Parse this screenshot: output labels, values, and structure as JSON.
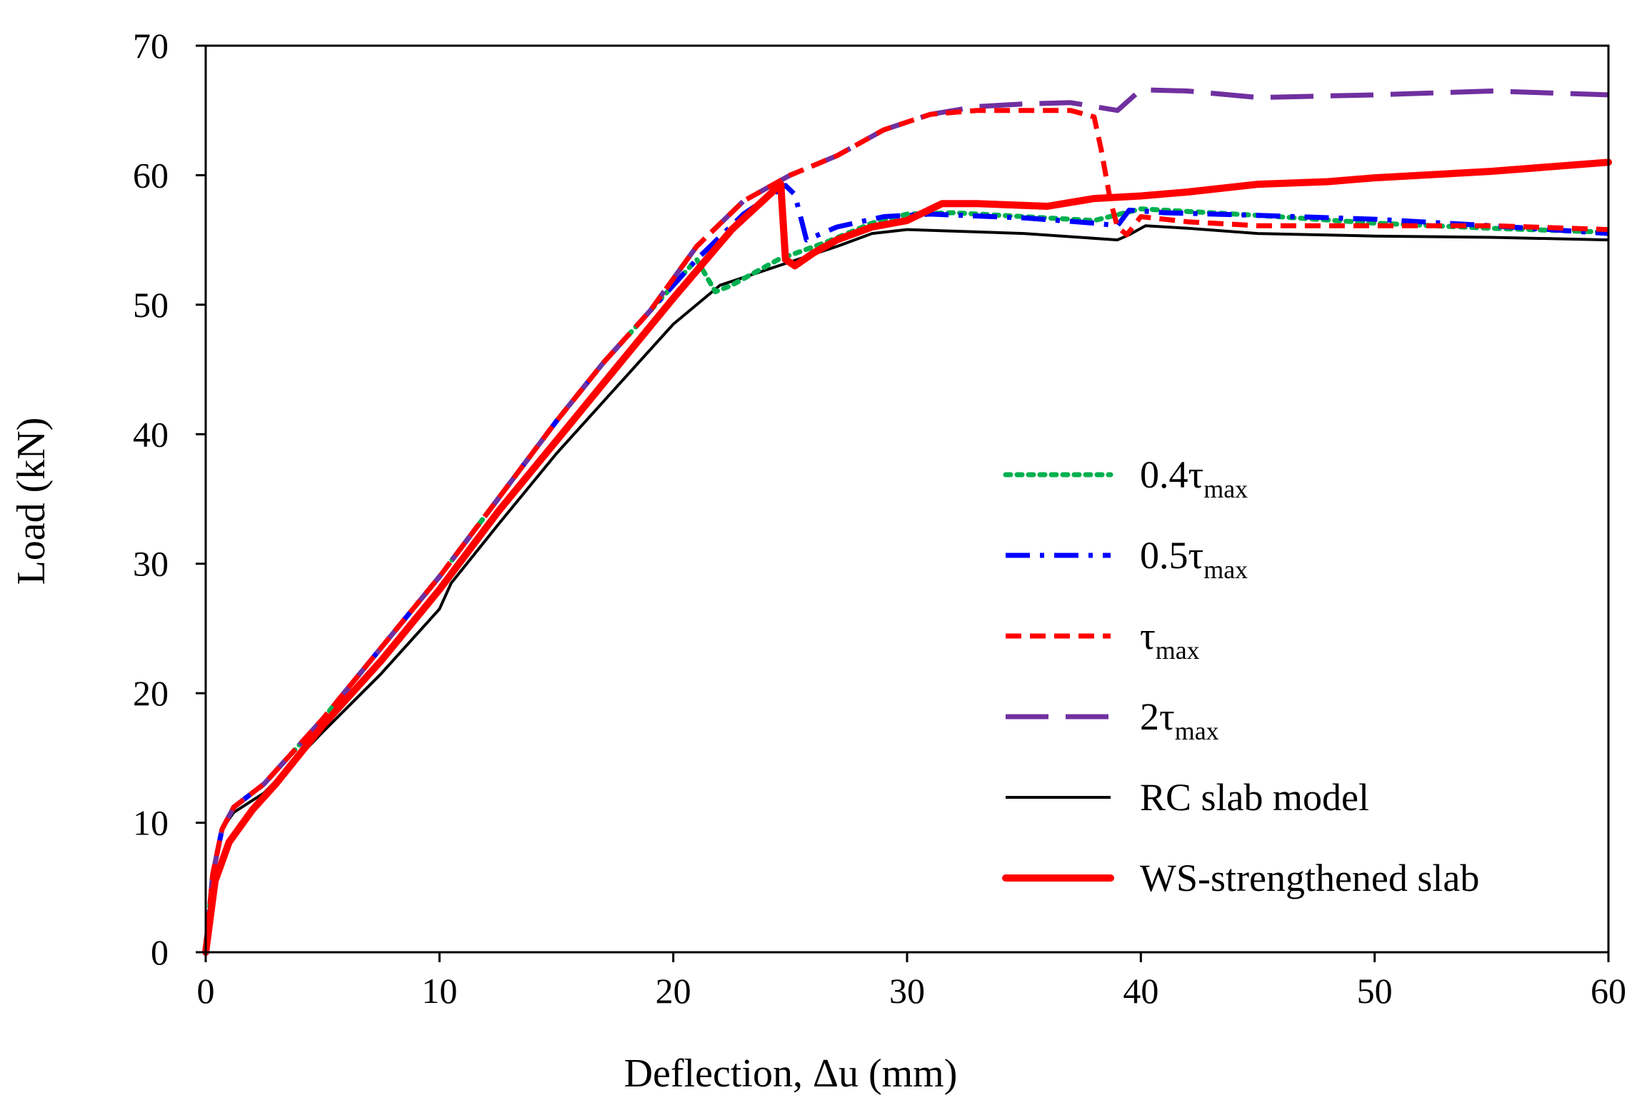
{
  "chart_data": {
    "type": "line",
    "title": "",
    "xlabel": "Deflection, Δu (mm)",
    "ylabel": "Load (kN)",
    "xlim": [
      0,
      60
    ],
    "ylim": [
      0,
      70
    ],
    "xticks": [
      0,
      10,
      20,
      30,
      40,
      50,
      60
    ],
    "yticks": [
      0,
      10,
      20,
      30,
      40,
      50,
      60,
      70
    ],
    "xtick_labels": [
      "0",
      "10",
      "20",
      "30",
      "40",
      "50",
      "60"
    ],
    "ytick_labels": [
      "0",
      "10",
      "20",
      "30",
      "40",
      "50",
      "60",
      "70"
    ],
    "grid": false,
    "legend_position": "center-right",
    "series": [
      {
        "name": "0.4τmax",
        "label_main": "0.4τ",
        "label_sub": "max",
        "color": "#00b050",
        "style": "dotted",
        "x": [
          0,
          0.3,
          0.7,
          1.2,
          2.5,
          5,
          7.5,
          10,
          12.5,
          15,
          17,
          19,
          21,
          21.8,
          22.5,
          24.5,
          26.5,
          28.5,
          30,
          32,
          35,
          38,
          40,
          42,
          45,
          50,
          55,
          60
        ],
        "y": [
          0,
          6,
          9.5,
          11.2,
          13,
          18,
          23.5,
          29,
          35,
          41,
          45.5,
          49.5,
          53.5,
          51,
          51.5,
          53.5,
          54.8,
          56.3,
          57,
          57.1,
          56.8,
          56.5,
          57.4,
          57.2,
          56.9,
          56.3,
          55.9,
          55.6
        ]
      },
      {
        "name": "0.5τmax",
        "label_main": "0.5τ",
        "label_sub": "max",
        "color": "#0000ff",
        "style": "dashdot",
        "x": [
          0,
          0.3,
          0.7,
          1.2,
          2.5,
          5,
          7.5,
          10,
          12.5,
          15,
          17,
          19,
          21,
          23,
          24.8,
          25.2,
          25.7,
          27,
          29,
          31,
          35,
          38,
          39,
          39.5,
          41,
          45,
          50,
          55,
          60
        ],
        "y": [
          0,
          6,
          9.5,
          11.2,
          13,
          18,
          23.5,
          29,
          35,
          41,
          45.5,
          49.5,
          53.5,
          57,
          59.2,
          58.5,
          55,
          56,
          56.8,
          57,
          56.7,
          56.3,
          56.1,
          57.3,
          57.1,
          56.9,
          56.6,
          56.1,
          55.5
        ]
      },
      {
        "name": "τmax",
        "label_main": "τ",
        "label_sub": "max",
        "color": "#ff0000",
        "style": "dashed",
        "x": [
          0,
          0.3,
          0.7,
          1.2,
          2.5,
          5,
          7.5,
          10,
          12.5,
          15,
          17,
          19,
          21,
          23,
          25,
          27,
          29,
          31,
          33,
          35,
          37,
          38,
          38.3,
          38.7,
          39,
          39.4,
          40,
          42,
          45,
          50,
          55,
          60
        ],
        "y": [
          0,
          6,
          9.5,
          11.2,
          13,
          18,
          23.5,
          29,
          35,
          41,
          45.5,
          49.5,
          54.5,
          58,
          60,
          61.5,
          63.5,
          64.7,
          65,
          65,
          65,
          64.5,
          62,
          58,
          56,
          55.4,
          56.8,
          56.4,
          56.1,
          56.1,
          56.1,
          55.8
        ]
      },
      {
        "name": "2τmax",
        "label_main": "2τ",
        "label_sub": "max",
        "color": "#7030a0",
        "style": "longdash",
        "x": [
          0,
          0.3,
          0.7,
          1.2,
          2.5,
          5,
          7.5,
          10,
          12.5,
          15,
          17,
          19,
          21,
          23,
          25,
          27,
          29,
          31,
          33,
          35,
          37,
          39,
          40,
          42,
          45,
          50,
          55,
          60
        ],
        "y": [
          0,
          6,
          9.5,
          11.2,
          13,
          18,
          23.5,
          29,
          35,
          41,
          45.5,
          49.5,
          54.5,
          58,
          60,
          61.5,
          63.5,
          64.7,
          65.3,
          65.5,
          65.6,
          65,
          66.6,
          66.5,
          66,
          66.2,
          66.5,
          66.2
        ]
      },
      {
        "name": "RC slab model",
        "label_main": "RC slab model",
        "label_sub": "",
        "color": "#000000",
        "style": "solid-thin",
        "x": [
          0,
          0.3,
          0.7,
          1.2,
          2.5,
          5,
          7.5,
          10,
          10.5,
          12.5,
          15,
          17.5,
          20,
          22,
          24.5,
          27,
          28.5,
          30,
          35,
          39,
          39.5,
          40.2,
          42,
          45,
          50,
          55,
          60
        ],
        "y": [
          0,
          6,
          9.5,
          10.8,
          12.3,
          17,
          21.5,
          26.5,
          28.5,
          33,
          38.5,
          43.5,
          48.5,
          51.5,
          53,
          54.5,
          55.5,
          55.8,
          55.5,
          55,
          55.4,
          56.1,
          55.9,
          55.5,
          55.3,
          55.2,
          55
        ]
      },
      {
        "name": "WS-strengthened slab",
        "label_main": "WS-strengthened slab",
        "label_sub": "",
        "color": "#ff0000",
        "style": "solid-thick",
        "x": [
          0,
          0.4,
          1,
          2,
          3,
          5,
          7.5,
          10,
          12.5,
          15,
          17.5,
          20,
          22.5,
          24.6,
          24.8,
          25.2,
          26,
          27,
          28.5,
          30,
          31.5,
          33,
          36,
          38,
          40,
          42,
          45,
          48,
          50,
          55,
          60
        ],
        "y": [
          0,
          5.5,
          8.5,
          11,
          13,
          17.5,
          22.5,
          28,
          34,
          39.5,
          45,
          50.5,
          55.8,
          59.3,
          53.5,
          53,
          54,
          55,
          56,
          56.5,
          57.8,
          57.8,
          57.6,
          58.2,
          58.4,
          58.7,
          59.3,
          59.5,
          59.8,
          60.3,
          61
        ]
      }
    ]
  }
}
